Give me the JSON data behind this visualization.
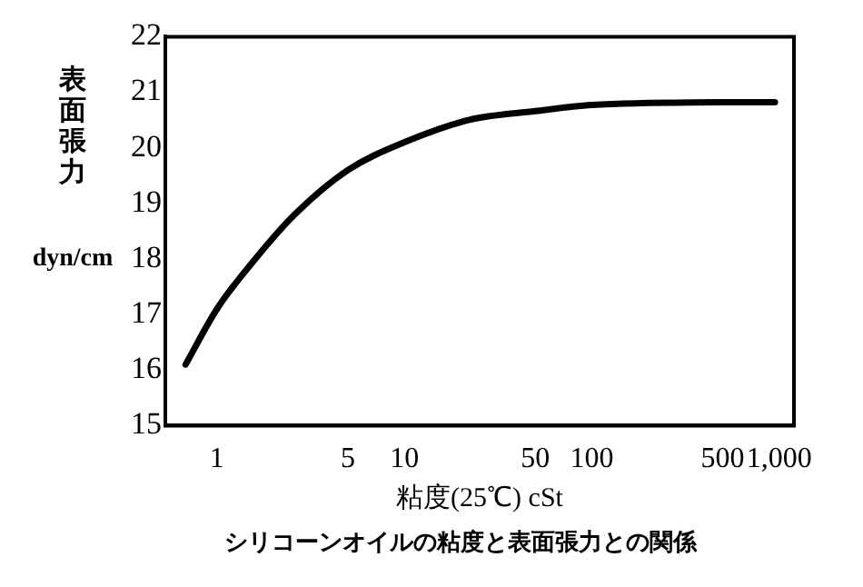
{
  "chart_data": {
    "type": "line",
    "title": "シリコーンオイルの粘度と表面張力との関係",
    "xlabel": "粘度(25℃) cSt",
    "ylabel": "表面張力 dyn/cm",
    "log": "x",
    "grid": false,
    "legend": false,
    "marker": "none",
    "line_style": "solid",
    "x": [
      0.68,
      1,
      1.6,
      2.6,
      5,
      10,
      22,
      50,
      100,
      500,
      950
    ],
    "series": [
      {
        "color": "#000000",
        "values": [
          16.1,
          17.1,
          18.0,
          18.8,
          19.6,
          20.1,
          20.5,
          20.66,
          20.77,
          20.82,
          20.82
        ]
      }
    ],
    "xlim": [
      0.53,
      1200
    ],
    "xticks": [
      1,
      5,
      10,
      50,
      100,
      500,
      {
        "value": 1000,
        "label": "1,000"
      }
    ],
    "ylim": [
      15,
      22
    ],
    "yticks": [
      15,
      16,
      17,
      18,
      19,
      20,
      21,
      22
    ]
  }
}
